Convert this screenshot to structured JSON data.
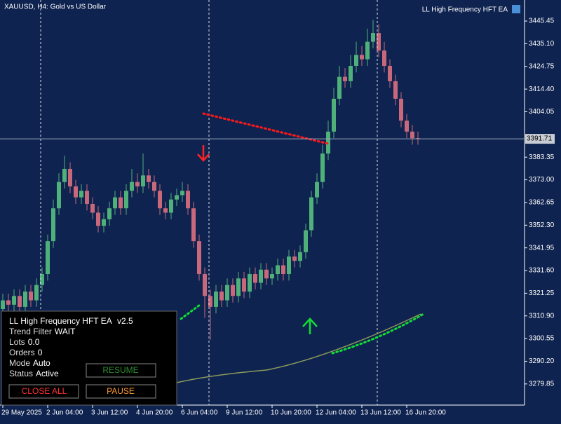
{
  "chart_data": {
    "type": "candlestick",
    "title": "XAUUSD, H4:  Gold vs US Dollar",
    "ea_label": "LL High Frequency HFT EA",
    "categories": [
      "29 May 2025",
      null,
      null,
      null,
      null,
      null,
      null,
      null,
      "2 Jun 04:00",
      null,
      null,
      null,
      null,
      null,
      null,
      null,
      "3 Jun 12:00",
      null,
      null,
      null,
      null,
      null,
      null,
      null,
      "4 Jun 20:00",
      null,
      null,
      null,
      null,
      null,
      null,
      null,
      "6 Jun 04:00",
      null,
      null,
      null,
      null,
      null,
      null,
      null,
      "9 Jun 12:00",
      null,
      null,
      null,
      null,
      null,
      null,
      null,
      "10 Jun 20:00",
      null,
      null,
      null,
      null,
      null,
      null,
      null,
      "12 Jun 04:00",
      null,
      null,
      null,
      null,
      null,
      null,
      null,
      "13 Jun 12:00",
      null,
      null,
      null,
      null,
      null,
      null,
      null,
      "16 Jun 20:00",
      null,
      null
    ],
    "open": [
      3314,
      3318,
      3316,
      3320,
      3315,
      3322,
      3318,
      3325,
      3330,
      3345,
      3360,
      3372,
      3378,
      3370,
      3365,
      3368,
      3362,
      3358,
      3352,
      3355,
      3360,
      3365,
      3360,
      3368,
      3372,
      3370,
      3375,
      3372,
      3368,
      3360,
      3358,
      3364,
      3366,
      3368,
      3360,
      3345,
      3330,
      3320,
      3315,
      3322,
      3318,
      3325,
      3320,
      3328,
      3322,
      3330,
      3326,
      3332,
      3328,
      3330,
      3334,
      3330,
      3338,
      3336,
      3340,
      3350,
      3365,
      3372,
      3385,
      3395,
      3410,
      3420,
      3418,
      3425,
      3430,
      3428,
      3436,
      3440,
      3432,
      3425,
      3418,
      3410,
      3400,
      3395,
      3392
    ],
    "high": [
      3321,
      3321,
      3323,
      3323,
      3325,
      3325,
      3328,
      3333,
      3348,
      3364,
      3376,
      3384,
      3381,
      3373,
      3371,
      3371,
      3365,
      3361,
      3358,
      3363,
      3368,
      3368,
      3371,
      3378,
      3376,
      3385,
      3378,
      3375,
      3371,
      3363,
      3367,
      3369,
      3372,
      3371,
      3363,
      3348,
      3333,
      3323,
      3325,
      3325,
      3328,
      3328,
      3331,
      3331,
      3333,
      3333,
      3335,
      3335,
      3333,
      3337,
      3337,
      3341,
      3341,
      3343,
      3353,
      3368,
      3376,
      3389,
      3400,
      3415,
      3425,
      3424,
      3430,
      3436,
      3434,
      3442,
      3446,
      3444,
      3436,
      3428,
      3421,
      3413,
      3403,
      3398,
      3395
    ],
    "low": [
      3311,
      3313,
      3313,
      3312,
      3312,
      3315,
      3315,
      3322,
      3327,
      3342,
      3357,
      3369,
      3367,
      3362,
      3362,
      3359,
      3355,
      3349,
      3349,
      3352,
      3357,
      3357,
      3357,
      3365,
      3367,
      3367,
      3369,
      3365,
      3357,
      3355,
      3355,
      3361,
      3363,
      3357,
      3342,
      3327,
      3310,
      3300,
      3312,
      3315,
      3315,
      3317,
      3317,
      3319,
      3319,
      3323,
      3323,
      3325,
      3325,
      3327,
      3327,
      3327,
      3333,
      3333,
      3337,
      3347,
      3362,
      3369,
      3382,
      3392,
      3407,
      3415,
      3415,
      3422,
      3425,
      3425,
      3433,
      3429,
      3422,
      3415,
      3407,
      3397,
      3392,
      3389,
      3389
    ],
    "close": [
      3318,
      3316,
      3320,
      3315,
      3322,
      3318,
      3325,
      3330,
      3345,
      3360,
      3372,
      3378,
      3370,
      3365,
      3368,
      3362,
      3358,
      3352,
      3355,
      3360,
      3365,
      3360,
      3368,
      3372,
      3370,
      3375,
      3372,
      3368,
      3360,
      3358,
      3364,
      3366,
      3368,
      3360,
      3345,
      3330,
      3320,
      3315,
      3322,
      3318,
      3325,
      3320,
      3328,
      3322,
      3330,
      3326,
      3332,
      3328,
      3330,
      3334,
      3330,
      3338,
      3336,
      3340,
      3350,
      3365,
      3372,
      3385,
      3395,
      3410,
      3420,
      3418,
      3425,
      3430,
      3428,
      3436,
      3440,
      3432,
      3425,
      3418,
      3410,
      3400,
      3395,
      3392,
      3391.71
    ],
    "up_color": "#4fb07a",
    "down_color": "#c8687a",
    "ylim": [
      3270.2,
      3455.06
    ],
    "yticks": [
      {
        "value": 3445.45,
        "label": "3445.45"
      },
      {
        "value": 3435.1,
        "label": "3435.10"
      },
      {
        "value": 3424.75,
        "label": "3424.75"
      },
      {
        "value": 3414.4,
        "label": "3414.40"
      },
      {
        "value": 3404.05,
        "label": "3404.05"
      },
      {
        "value": 3383.35,
        "label": "3383.35"
      },
      {
        "value": 3373,
        "label": "3373.00"
      },
      {
        "value": 3362.65,
        "label": "3362.65"
      },
      {
        "value": 3352.3,
        "label": "3352.30"
      },
      {
        "value": 3341.95,
        "label": "3341.95"
      },
      {
        "value": 3331.6,
        "label": "3331.60"
      },
      {
        "value": 3321.25,
        "label": "3321.25"
      },
      {
        "value": 3310.9,
        "label": "3310.90"
      },
      {
        "value": 3300.55,
        "label": "3300.55"
      },
      {
        "value": 3290.2,
        "label": "3290.20"
      },
      {
        "value": 3279.85,
        "label": "3279.85"
      }
    ],
    "current_price": {
      "value": 3391.71,
      "label": "3391.71"
    }
  },
  "panel": {
    "title": "LL High Frequency HFT EA",
    "version": "v2.5",
    "rows": [
      [
        "Trend Filter",
        "WAIT"
      ],
      [
        "Lots",
        "0.0"
      ],
      [
        "Orders",
        "0"
      ],
      [
        "Mode",
        "Auto"
      ],
      [
        "Status",
        "Active"
      ]
    ],
    "buttons": {
      "resume": "RESUME",
      "close_all": "CLOSE ALL",
      "pause": "PAUSE"
    }
  }
}
